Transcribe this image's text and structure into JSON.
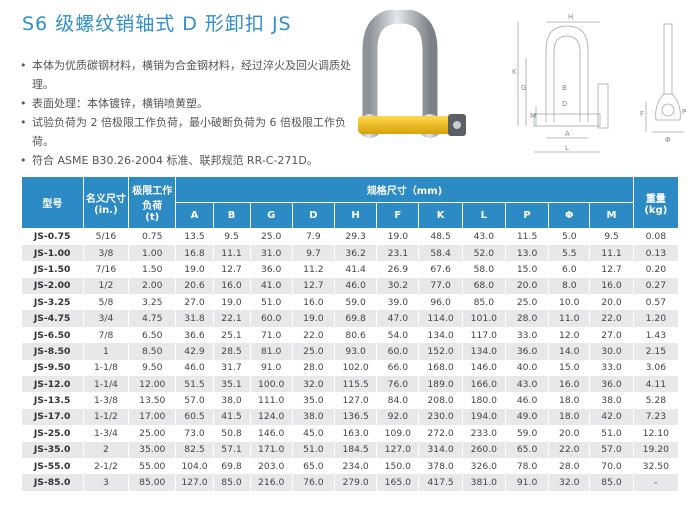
{
  "title": "S6 级螺纹销轴式 D 形卸扣 JS",
  "bullets": [
    "本体为优质碳钢材料，横销为合金钢材料，经过淬火及回火调质处理。",
    "表面处理：本体镀锌，横销喷黄塑。",
    "试验负荷为 2 倍极限工作负荷，最小破断负荷为 6 倍极限工作负荷。",
    "符合 ASME B30.26-2004 标准、联邦规范 RR-C-271D。"
  ],
  "drawing_labels": {
    "H": "H",
    "G": "G",
    "K": "K",
    "M": "M",
    "B": "B",
    "D": "D",
    "A": "A",
    "L": "L",
    "F": "F",
    "P": "P",
    "Phi": "Φ"
  },
  "colors": {
    "accent": "#2c8bc4",
    "title": "#2f8fc9",
    "row_alt": "#e6e8ea",
    "pin": "#f2c21c"
  },
  "table": {
    "header": {
      "model": "型号",
      "nominal": "名义尺寸",
      "nominal_unit": "(in.)",
      "wll": "极限工作",
      "wll2": "负荷",
      "wll_unit": "(t)",
      "spec": "规格尺寸（mm)",
      "weight": "重量",
      "weight_unit": "(kg)",
      "cols": [
        "A",
        "B",
        "G",
        "D",
        "H",
        "F",
        "K",
        "L",
        "P",
        "Φ",
        "M"
      ]
    },
    "rows": [
      [
        "JS-0.75",
        "5/16",
        "0.75",
        "13.5",
        "9.5",
        "25.0",
        "7.9",
        "29.3",
        "19.0",
        "48.5",
        "43.0",
        "11.5",
        "5.0",
        "9.5",
        "0.08"
      ],
      [
        "JS-1.00",
        "3/8",
        "1.00",
        "16.8",
        "11.1",
        "31.0",
        "9.7",
        "36.2",
        "23.1",
        "58.4",
        "52.0",
        "13.0",
        "5.5",
        "11.1",
        "0.13"
      ],
      [
        "JS-1.50",
        "7/16",
        "1.50",
        "19.0",
        "12.7",
        "36.0",
        "11.2",
        "41.4",
        "26.9",
        "67.6",
        "58.0",
        "15.0",
        "6.0",
        "12.7",
        "0.20"
      ],
      [
        "JS-2.00",
        "1/2",
        "2.00",
        "20.6",
        "16.0",
        "41.0",
        "12.7",
        "46.0",
        "30.2",
        "77.0",
        "68.0",
        "20.0",
        "8.0",
        "16.0",
        "0.27"
      ],
      [
        "JS-3.25",
        "5/8",
        "3.25",
        "27.0",
        "19.0",
        "51.0",
        "16.0",
        "59.0",
        "39.0",
        "96.0",
        "85.0",
        "25.0",
        "10.0",
        "20.0",
        "0.57"
      ],
      [
        "JS-4.75",
        "3/4",
        "4.75",
        "31.8",
        "22.1",
        "60.0",
        "19.0",
        "69.8",
        "47.0",
        "114.0",
        "101.0",
        "28.0",
        "11.0",
        "22.0",
        "1.20"
      ],
      [
        "JS-6.50",
        "7/8",
        "6.50",
        "36.6",
        "25.1",
        "71.0",
        "22.0",
        "80.6",
        "54.0",
        "134.0",
        "117.0",
        "33.0",
        "12.0",
        "27.0",
        "1.43"
      ],
      [
        "JS-8.50",
        "1",
        "8.50",
        "42.9",
        "28.5",
        "81.0",
        "25.0",
        "93.0",
        "60.0",
        "152.0",
        "134.0",
        "36.0",
        "14.0",
        "30.0",
        "2.15"
      ],
      [
        "JS-9.50",
        "1-1/8",
        "9.50",
        "46.0",
        "31.7",
        "91.0",
        "28.0",
        "102.0",
        "66.0",
        "168.0",
        "146.0",
        "40.0",
        "15.0",
        "33.0",
        "3.06"
      ],
      [
        "JS-12.0",
        "1-1/4",
        "12.00",
        "51.5",
        "35.1",
        "100.0",
        "32.0",
        "115.5",
        "76.0",
        "189.0",
        "166.0",
        "43.0",
        "16.0",
        "36.0",
        "4.11"
      ],
      [
        "JS-13.5",
        "1-3/8",
        "13.50",
        "57.0",
        "38.0",
        "111.0",
        "35.0",
        "127.0",
        "84.0",
        "208.0",
        "180.0",
        "46.0",
        "18.0",
        "38.0",
        "5.28"
      ],
      [
        "JS-17.0",
        "1-1/2",
        "17.00",
        "60.5",
        "41.5",
        "124.0",
        "38.0",
        "136.5",
        "92.0",
        "230.0",
        "194.0",
        "49.0",
        "18.0",
        "42.0",
        "7.23"
      ],
      [
        "JS-25.0",
        "1-3/4",
        "25.00",
        "73.0",
        "50.8",
        "146.0",
        "45.0",
        "163.0",
        "109.0",
        "272.0",
        "233.0",
        "59.0",
        "20.0",
        "51.0",
        "12.10"
      ],
      [
        "JS-35.0",
        "2",
        "35.00",
        "82.5",
        "57.1",
        "171.0",
        "51.0",
        "184.5",
        "127.0",
        "314.0",
        "260.0",
        "65.0",
        "22.0",
        "57.0",
        "19.20"
      ],
      [
        "JS-55.0",
        "2-1/2",
        "55.00",
        "104.0",
        "69.8",
        "203.0",
        "65.0",
        "234.0",
        "150.0",
        "378.0",
        "326.0",
        "78.0",
        "28.0",
        "70.0",
        "32.50"
      ],
      [
        "JS-85.0",
        "3",
        "85.00",
        "127.0",
        "85.0",
        "216.0",
        "76.0",
        "279.0",
        "165.0",
        "417.5",
        "381.0",
        "91.0",
        "32.0",
        "85.0",
        "-"
      ]
    ]
  }
}
